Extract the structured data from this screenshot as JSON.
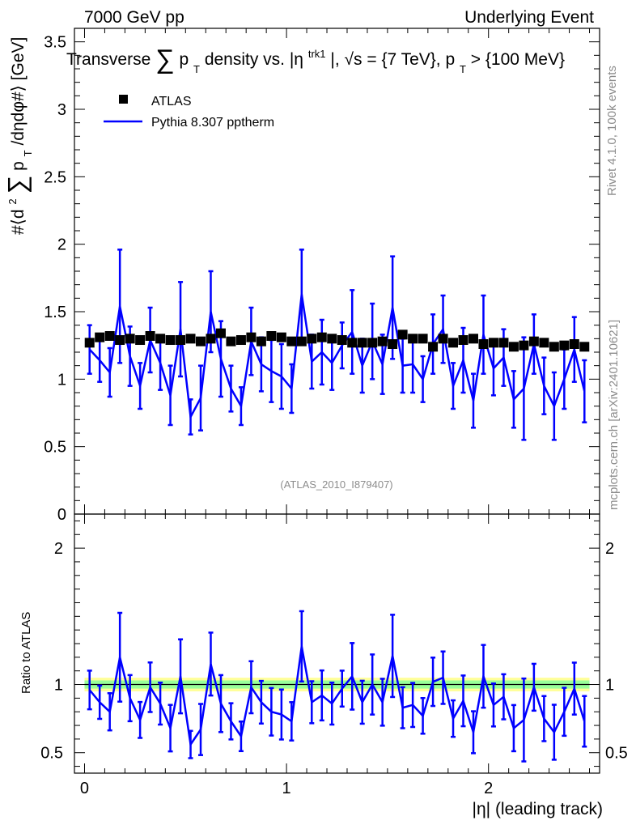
{
  "header": {
    "left": "7000 GeV pp",
    "right": "Underlying Event"
  },
  "side_labels": {
    "rivet": "Rivet 4.1.0,  100k events",
    "mcplots": "mcplots.cern.ch [arXiv:2401.10621]"
  },
  "colors": {
    "data": "#000000",
    "mc": "#0000ff",
    "band_yellow": "#ffff99",
    "band_green": "#99ff99",
    "ratio_line": "#000000"
  },
  "chart_data": {
    "type": "scatter",
    "title": {
      "prefix": "Transverse",
      "sum": "∑",
      "p": "p",
      "sub": "T",
      "mid": " density vs. |η",
      "sup": "trk1",
      "end": "|, √s = {7 TeV}, p",
      "sub2": "T",
      "tail": " > {100 MeV}"
    },
    "ylabel_main": "#⟨d² ∑ p_T /dηdφ#⟩ [GeV]",
    "ylabel_main_parts": {
      "a": "#⟨d",
      "b": "2",
      "c": "∑",
      "d": " p",
      "e": "T",
      "f": " /dηdφ#⟩ [GeV]"
    },
    "ylabel_ratio": "Ratio to ATLAS",
    "xlabel": "|η| (leading track)",
    "watermark": "(ATLAS_2010_I879407)",
    "legend": [
      "ATLAS",
      "Pythia 8.307 pptherm"
    ],
    "xlim": [
      -0.05,
      2.55
    ],
    "ylim_main": [
      0,
      3.6
    ],
    "ylim_ratio": [
      0.35,
      2.25
    ],
    "x_ticks": [
      "0",
      "1",
      "2"
    ],
    "y_ticks_main": [
      "0",
      "0.5",
      "1",
      "1.5",
      "2",
      "2.5",
      "3",
      "3.5"
    ],
    "y_ticks_ratio": [
      "0.5",
      "1",
      "2"
    ],
    "x": [
      0.025,
      0.075,
      0.125,
      0.175,
      0.225,
      0.275,
      0.325,
      0.375,
      0.425,
      0.475,
      0.525,
      0.575,
      0.625,
      0.675,
      0.725,
      0.775,
      0.825,
      0.875,
      0.925,
      0.975,
      1.025,
      1.075,
      1.125,
      1.175,
      1.225,
      1.275,
      1.325,
      1.375,
      1.425,
      1.475,
      1.525,
      1.575,
      1.625,
      1.675,
      1.725,
      1.775,
      1.825,
      1.875,
      1.925,
      1.975,
      2.025,
      2.075,
      2.125,
      2.175,
      2.225,
      2.275,
      2.325,
      2.375,
      2.425,
      2.475
    ],
    "atlas": [
      1.27,
      1.31,
      1.32,
      1.29,
      1.3,
      1.29,
      1.32,
      1.3,
      1.29,
      1.29,
      1.3,
      1.28,
      1.3,
      1.34,
      1.28,
      1.29,
      1.31,
      1.28,
      1.32,
      1.31,
      1.28,
      1.28,
      1.3,
      1.31,
      1.3,
      1.29,
      1.27,
      1.27,
      1.27,
      1.28,
      1.26,
      1.33,
      1.3,
      1.3,
      1.24,
      1.3,
      1.27,
      1.29,
      1.3,
      1.26,
      1.27,
      1.27,
      1.24,
      1.25,
      1.28,
      1.27,
      1.24,
      1.25,
      1.26,
      1.24
    ],
    "atlas_err": 0.02,
    "mc": [
      1.22,
      1.14,
      1.05,
      1.54,
      1.17,
      0.95,
      1.29,
      1.12,
      0.88,
      1.37,
      0.72,
      0.86,
      1.5,
      1.15,
      0.93,
      0.8,
      1.28,
      1.11,
      1.06,
      1.02,
      0.93,
      1.63,
      1.13,
      1.2,
      1.12,
      1.25,
      1.35,
      1.1,
      1.28,
      1.11,
      1.53,
      1.1,
      1.11,
      1.0,
      1.26,
      1.37,
      0.95,
      1.14,
      0.84,
      1.33,
      1.08,
      1.16,
      0.85,
      0.93,
      1.26,
      0.95,
      0.8,
      1.0,
      1.22,
      0.91
    ],
    "mc_err": [
      0.18,
      0.16,
      0.18,
      0.42,
      0.22,
      0.17,
      0.24,
      0.2,
      0.22,
      0.35,
      0.13,
      0.24,
      0.3,
      0.28,
      0.17,
      0.14,
      0.25,
      0.2,
      0.23,
      0.24,
      0.18,
      0.33,
      0.2,
      0.24,
      0.2,
      0.17,
      0.31,
      0.2,
      0.28,
      0.22,
      0.38,
      0.2,
      0.21,
      0.17,
      0.22,
      0.25,
      0.17,
      0.24,
      0.2,
      0.29,
      0.2,
      0.21,
      0.21,
      0.38,
      0.22,
      0.21,
      0.25,
      0.22,
      0.24,
      0.23
    ],
    "ratio": [
      0.96,
      0.87,
      0.8,
      1.2,
      0.9,
      0.74,
      0.98,
      0.86,
      0.68,
      1.06,
      0.56,
      0.67,
      1.15,
      0.86,
      0.73,
      0.62,
      0.98,
      0.87,
      0.8,
      0.78,
      0.73,
      1.28,
      0.87,
      0.92,
      0.86,
      0.97,
      1.06,
      0.87,
      1.0,
      0.87,
      1.21,
      0.83,
      0.85,
      0.77,
      1.02,
      1.05,
      0.75,
      0.88,
      0.65,
      1.06,
      0.85,
      0.91,
      0.68,
      0.74,
      0.98,
      0.75,
      0.65,
      0.8,
      0.97,
      0.73
    ],
    "band_yellow_halfwidth": 0.05,
    "band_green_halfwidth": 0.03
  }
}
